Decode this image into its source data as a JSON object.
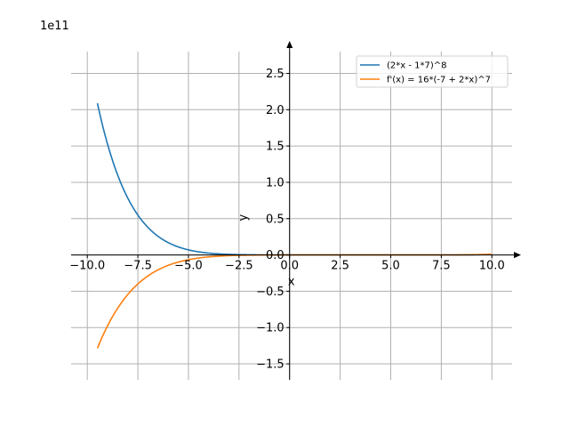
{
  "chart_data": {
    "type": "line",
    "title": "",
    "offset_text": "1e11",
    "xlabel": "x",
    "ylabel": "y",
    "xlim": [
      -10.8,
      11
    ],
    "ylim": [
      -1.72,
      2.8
    ],
    "x_range": [
      -9.5,
      10.0
    ],
    "x_ticks": [
      -10.0,
      -7.5,
      -5.0,
      -2.5,
      0.0,
      2.5,
      5.0,
      7.5,
      10.0
    ],
    "x_tick_labels": [
      "−10.0",
      "−7.5",
      "−5.0",
      "−2.5",
      "0.0",
      "2.5",
      "5.0",
      "7.5",
      "10.0"
    ],
    "y_ticks": [
      -1.5,
      -1.0,
      -0.5,
      0.0,
      0.5,
      1.0,
      1.5,
      2.0,
      2.5
    ],
    "y_tick_labels": [
      "−1.5",
      "−1.0",
      "−0.5",
      "0.0",
      "0.5",
      "1.0",
      "1.5",
      "2.0",
      "2.5"
    ],
    "y_scale": 100000000000.0,
    "grid": true,
    "legend_position": "top-right",
    "series": [
      {
        "name": "(2*x - 1*7)^8",
        "color": "#1f77b4",
        "expression": "(2*x - 7)^8",
        "x": [
          -9.5,
          -9.0,
          -8.5,
          -8.0,
          -7.5,
          -7.0,
          -6.5,
          -6.0,
          -5.5,
          -5.0,
          -4.5,
          -4.0,
          -3.5,
          -3.0,
          -2.5,
          -2.0,
          -1.0,
          0.0,
          2.0,
          4.0,
          6.0,
          8.0,
          10.0
        ],
        "values": [
          2.2153,
          1.5259,
          1.0236,
          0.6676,
          0.4219,
          0.2579,
          0.1522,
          0.0866,
          0.0474,
          0.0249,
          0.0125,
          0.00599,
          0.00273,
          0.00117,
          0.00047,
          0.00018,
          2e-05,
          0.0,
          0.0,
          0.0,
          0.0,
          0.0,
          1e-06
        ]
      },
      {
        "name": "f'(x) = 16*(-7 + 2*x)^7",
        "color": "#ff7f0e",
        "expression": "16*(2*x - 7)^7",
        "x": [
          -9.5,
          -9.0,
          -8.5,
          -8.0,
          -7.5,
          -7.0,
          -6.5,
          -6.0,
          -5.5,
          -5.0,
          -4.5,
          -4.0,
          -3.5,
          -3.0,
          -2.5,
          -2.0,
          -1.0,
          0.0,
          2.0,
          4.0,
          6.0,
          8.0,
          10.0
        ],
        "values": [
          -1.3127,
          -0.9767,
          -0.7144,
          -0.5135,
          -0.3622,
          -0.2505,
          -0.1697,
          -0.1125,
          -0.073,
          -0.0462,
          -0.0286,
          -0.01728,
          -0.01014,
          -0.00577,
          -0.00317,
          -0.00167,
          -0.00041,
          -0.00013,
          0.0,
          0.0,
          0.0,
          0.0,
          6e-06
        ]
      }
    ]
  }
}
